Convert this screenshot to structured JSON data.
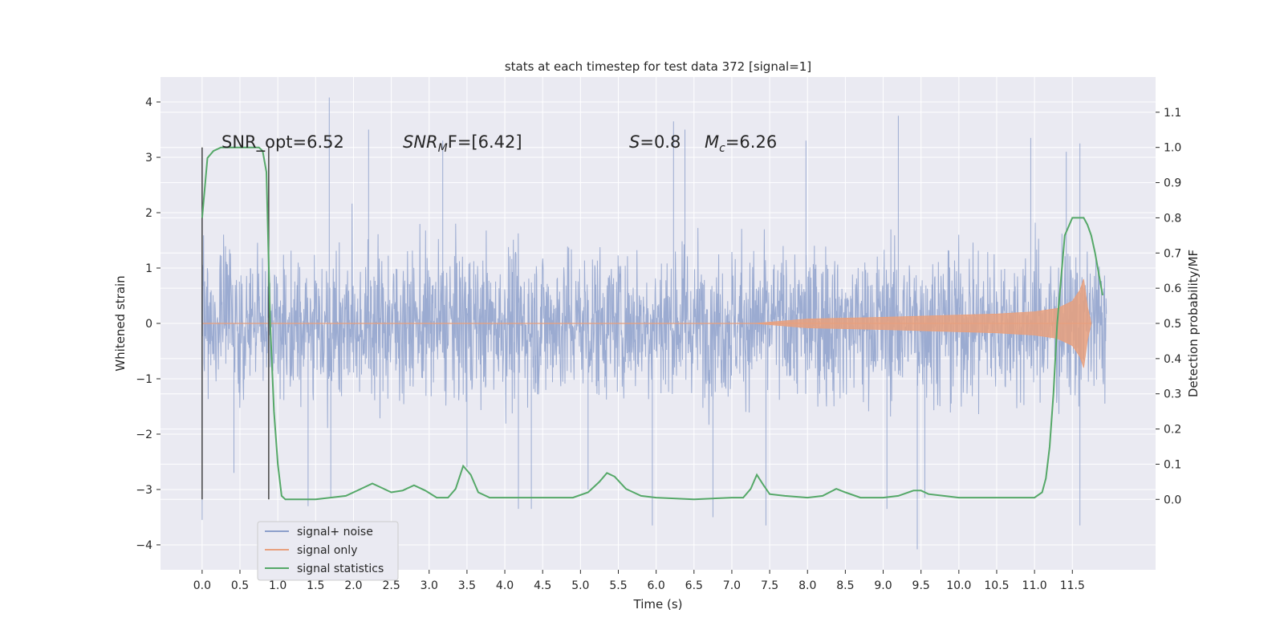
{
  "chart_data": {
    "type": "line",
    "title": "stats at each timestep for test data 372 [signal=1]",
    "xlabel": "Time (s)",
    "ylabel": "Whitened strain",
    "y2label": "Detection probability/MF",
    "xlim": [
      -0.55,
      12.6
    ],
    "ylim": [
      -4.45,
      4.45
    ],
    "y2lim": [
      -0.2,
      1.2
    ],
    "grid": true,
    "legend_position": "lower-left",
    "x_ticks": [
      0.0,
      0.5,
      1.0,
      1.5,
      2.0,
      2.5,
      3.0,
      3.5,
      4.0,
      4.5,
      5.0,
      5.5,
      6.0,
      6.5,
      7.0,
      7.5,
      8.0,
      8.5,
      9.0,
      9.5,
      10.0,
      10.5,
      11.0,
      11.5
    ],
    "x_tick_labels": [
      "0.0",
      "0.5",
      "1.0",
      "1.5",
      "2.0",
      "2.5",
      "3.0",
      "3.5",
      "4.0",
      "4.5",
      "5.0",
      "5.5",
      "6.0",
      "6.5",
      "7.0",
      "7.5",
      "8.0",
      "8.5",
      "9.0",
      "9.5",
      "10.0",
      "10.5",
      "11.0",
      "11.5"
    ],
    "y_ticks": [
      -4,
      -3,
      -2,
      -1,
      0,
      1,
      2,
      3,
      4
    ],
    "y_tick_labels": [
      "−4",
      "−3",
      "−2",
      "−1",
      "0",
      "1",
      "2",
      "3",
      "4"
    ],
    "y2_ticks": [
      0.0,
      0.1,
      0.2,
      0.3,
      0.4,
      0.5,
      0.6,
      0.7,
      0.8,
      0.9,
      1.0,
      1.1
    ],
    "y2_tick_labels": [
      "0.0",
      "0.1",
      "0.2",
      "0.3",
      "0.4",
      "0.5",
      "0.6",
      "0.7",
      "0.8",
      "0.9",
      "1.0",
      "1.1"
    ],
    "annotations": {
      "snr_opt": "SNR_opt=6.52",
      "snr_mf_main": "SNR",
      "snr_mf_sub": "M",
      "snr_mf_tail": "F=[6.42]",
      "s_sym": "S",
      "s_val": "=0.8",
      "mc_sym": "M",
      "mc_sub": "c",
      "mc_val": "=6.26"
    },
    "vertical_markers": [
      0.0,
      0.88
    ],
    "series": [
      {
        "name": "signal+ noise",
        "color": "#8da0cb",
        "x_range": [
          0.0,
          11.95
        ],
        "typical_envelope": [
          -1.8,
          1.8
        ],
        "peaks": [
          [
            0.0,
            2.4
          ],
          [
            0.0,
            -3.55
          ],
          [
            0.42,
            -2.7
          ],
          [
            1.4,
            -3.3
          ],
          [
            1.68,
            4.08
          ],
          [
            1.7,
            -3.15
          ],
          [
            2.2,
            3.5
          ],
          [
            3.18,
            3.3
          ],
          [
            3.5,
            -2.6
          ],
          [
            4.18,
            -3.35
          ],
          [
            4.35,
            -3.35
          ],
          [
            5.1,
            -3.0
          ],
          [
            6.23,
            3.65
          ],
          [
            6.38,
            3.5
          ],
          [
            5.95,
            -3.65
          ],
          [
            6.75,
            -3.5
          ],
          [
            7.45,
            -3.65
          ],
          [
            7.98,
            3.3
          ],
          [
            9.05,
            -3.35
          ],
          [
            9.2,
            3.75
          ],
          [
            9.45,
            -4.08
          ],
          [
            9.55,
            -3.15
          ],
          [
            10.95,
            3.35
          ],
          [
            11.42,
            3.1
          ],
          [
            11.6,
            3.25
          ],
          [
            11.6,
            -3.65
          ]
        ]
      },
      {
        "name": "signal only",
        "color": "#e8a07e",
        "x": [
          0.0,
          7.3,
          8.0,
          9.0,
          10.0,
          10.5,
          11.0,
          11.3,
          11.5,
          11.6,
          11.65,
          11.7,
          11.75
        ],
        "envelope": [
          0.0,
          0.0,
          0.08,
          0.11,
          0.15,
          0.17,
          0.21,
          0.27,
          0.4,
          0.6,
          0.8,
          0.3,
          0.0
        ]
      },
      {
        "name": "signal statistics",
        "color": "#55a868",
        "x": [
          0.0,
          0.07,
          0.15,
          0.25,
          0.4,
          0.6,
          0.75,
          0.8,
          0.85,
          0.9,
          0.95,
          1.0,
          1.05,
          1.1,
          1.5,
          1.9,
          2.1,
          2.25,
          2.35,
          2.5,
          2.65,
          2.8,
          2.95,
          3.1,
          3.25,
          3.35,
          3.45,
          3.55,
          3.65,
          3.8,
          4.2,
          4.6,
          4.9,
          5.1,
          5.25,
          5.35,
          5.45,
          5.6,
          5.8,
          6.0,
          6.5,
          7.0,
          7.15,
          7.25,
          7.33,
          7.42,
          7.5,
          7.7,
          8.0,
          8.2,
          8.38,
          8.5,
          8.7,
          9.0,
          9.2,
          9.4,
          9.5,
          9.6,
          9.8,
          10.0,
          10.5,
          11.0,
          11.1,
          11.15,
          11.2,
          11.25,
          11.3,
          11.4,
          11.5,
          11.6,
          11.65,
          11.7,
          11.75,
          11.8,
          11.9
        ],
        "values": [
          0.8,
          0.97,
          0.99,
          1.0,
          1.0,
          1.0,
          1.0,
          0.99,
          0.93,
          0.5,
          0.25,
          0.1,
          0.01,
          0.0,
          0.0,
          0.01,
          0.03,
          0.045,
          0.035,
          0.02,
          0.025,
          0.04,
          0.025,
          0.005,
          0.005,
          0.03,
          0.095,
          0.07,
          0.02,
          0.005,
          0.005,
          0.005,
          0.005,
          0.02,
          0.05,
          0.075,
          0.065,
          0.03,
          0.01,
          0.005,
          0.0,
          0.005,
          0.005,
          0.03,
          0.07,
          0.04,
          0.015,
          0.01,
          0.005,
          0.01,
          0.03,
          0.02,
          0.005,
          0.005,
          0.01,
          0.025,
          0.025,
          0.015,
          0.01,
          0.005,
          0.005,
          0.005,
          0.02,
          0.06,
          0.15,
          0.3,
          0.5,
          0.75,
          0.8,
          0.8,
          0.8,
          0.78,
          0.75,
          0.7,
          0.58
        ]
      }
    ]
  }
}
